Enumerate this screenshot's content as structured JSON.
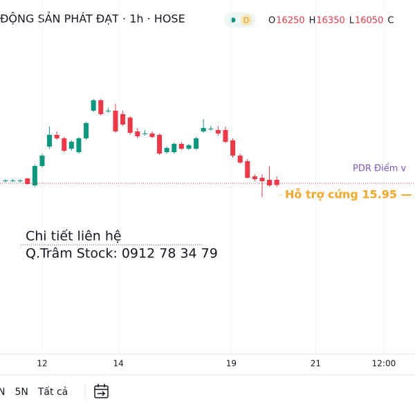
{
  "header": {
    "title": "ĐỘNG SẢN PHÁT ĐẠT · 1h · HOSE",
    "badge": "D",
    "ohlc": [
      {
        "label": "O",
        "value": "16250"
      },
      {
        "label": "H",
        "value": "16350"
      },
      {
        "label": "L",
        "value": "16050"
      },
      {
        "label": "C",
        "value": ""
      }
    ]
  },
  "annotations": {
    "pdr": "PDR Điểm v",
    "support": "Hỗ trợ cứng 15.95 —",
    "contact1": "Chi tiết liên hệ",
    "contact2": "Q.Trâm Stock: 0912 78 34 79"
  },
  "toolbar": [
    "N",
    "5N",
    "Tất cả"
  ],
  "chart_data": {
    "type": "candlestick",
    "up_color": "#089981",
    "down_color": "#f23645",
    "x": [
      0,
      1,
      2,
      3,
      4,
      5,
      6,
      7,
      8,
      9,
      10,
      11,
      12,
      13,
      14,
      15,
      16,
      17,
      18,
      19,
      20,
      21,
      22,
      23,
      24,
      25,
      26,
      27,
      28,
      29,
      30,
      31,
      32,
      33,
      34,
      35,
      36,
      37
    ],
    "open": [
      16210,
      16230,
      16210,
      16290,
      16090,
      16650,
      17210,
      17550,
      17450,
      17150,
      17050,
      17450,
      18250,
      18550,
      18250,
      18250,
      18150,
      18050,
      17650,
      17590,
      17590,
      17550,
      17050,
      17050,
      17290,
      17150,
      17150,
      17650,
      17730,
      17690,
      17690,
      17390,
      16950,
      16790,
      16350,
      16310,
      16250,
      16250
    ],
    "high": [
      16270,
      16270,
      16270,
      16310,
      16690,
      17010,
      17790,
      17650,
      17490,
      17390,
      17490,
      17930,
      18590,
      18590,
      18330,
      18450,
      18250,
      18090,
      17750,
      17690,
      17650,
      17590,
      17210,
      17330,
      17350,
      17290,
      17490,
      18010,
      17810,
      17810,
      17790,
      17450,
      17010,
      16850,
      16410,
      16410,
      16650,
      16350
    ],
    "low": [
      16170,
      16190,
      16170,
      16110,
      16050,
      16610,
      17150,
      17410,
      17050,
      17090,
      17010,
      17410,
      18210,
      18110,
      18190,
      17610,
      17810,
      17550,
      17450,
      17530,
      17450,
      16970,
      17010,
      17010,
      17110,
      17110,
      17110,
      17610,
      17670,
      17530,
      17310,
      16890,
      16710,
      16290,
      16210,
      15750,
      16050,
      16050
    ],
    "close": [
      16230,
      16230,
      16230,
      16130,
      16650,
      16950,
      17550,
      17450,
      17090,
      17350,
      17450,
      17890,
      18550,
      18150,
      18250,
      17650,
      17850,
      17610,
      17510,
      17590,
      17490,
      17010,
      17170,
      17290,
      17150,
      17250,
      17450,
      17750,
      17730,
      17590,
      17350,
      16950,
      16750,
      16310,
      16270,
      16210,
      16090,
      16100
    ],
    "xlim": [
      -0.75,
      55.85
    ],
    "ylim": [
      11250,
      21250
    ],
    "xticks": [
      {
        "value": 5,
        "label": "12"
      },
      {
        "value": 15.4,
        "label": "14"
      },
      {
        "value": 30.8,
        "label": "19"
      },
      {
        "value": 42.3,
        "label": "21"
      },
      {
        "value": 51.6,
        "label": "12:00"
      }
    ]
  }
}
